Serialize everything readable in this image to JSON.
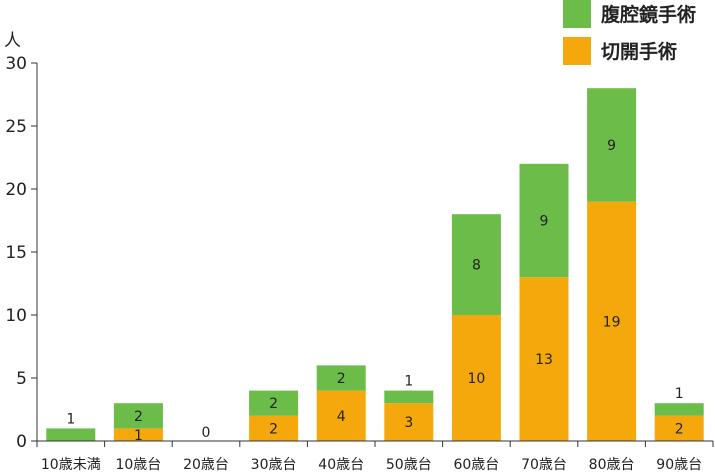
{
  "chart_data": {
    "type": "bar",
    "stacked": true,
    "ylabel": "人",
    "ylim": [
      0,
      30
    ],
    "yticks": [
      0,
      5,
      10,
      15,
      20,
      25,
      30
    ],
    "grid": false,
    "legend_position": "top-right",
    "categories": [
      "10歳未満",
      "10歳台",
      "20歳台",
      "30歳台",
      "40歳台",
      "50歳台",
      "60歳台",
      "70歳台",
      "80歳台",
      "90歳台"
    ],
    "series": [
      {
        "name": "切開手術",
        "color": "#f5a80b",
        "values": [
          0,
          1,
          0,
          2,
          4,
          3,
          10,
          13,
          19,
          2
        ]
      },
      {
        "name": "腹腔鏡手術",
        "color": "#6cbc4a",
        "values": [
          1,
          2,
          0,
          2,
          2,
          1,
          8,
          9,
          9,
          1
        ]
      }
    ],
    "zero_total_label": "0"
  }
}
